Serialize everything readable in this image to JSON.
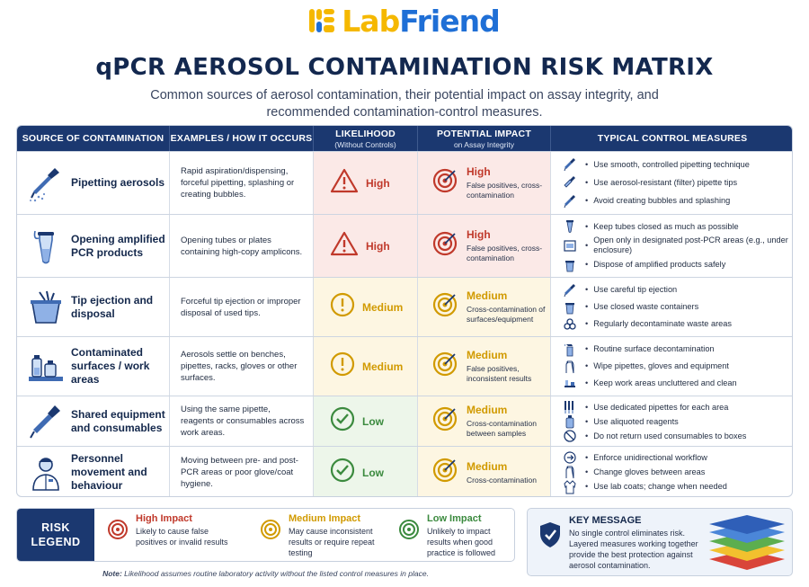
{
  "brand": {
    "logo_lab": "Lab",
    "logo_friend": "Friend"
  },
  "header": {
    "title": "qPCR AEROSOL CONTAMINATION RISK MATRIX",
    "subtitle": "Common sources of aerosol contamination, their potential impact on assay integrity, and recommended contamination-control measures."
  },
  "columns": {
    "source": "SOURCE OF CONTAMINATION",
    "examples": "EXAMPLES / HOW IT OCCURS",
    "likelihood": "LIKELIHOOD",
    "likelihood_sub": "(Without Controls)",
    "impact": "POTENTIAL IMPACT",
    "impact_sub": "on Assay Integrity",
    "controls": "TYPICAL CONTROL MEASURES"
  },
  "rows": [
    {
      "source": "Pipetting aerosols",
      "source_icon": "pipette-spray-icon",
      "examples": "Rapid aspiration/dispensing, forceful pipetting, splashing or creating bubbles.",
      "likelihood": "High",
      "likelihood_icon": "warning-icon",
      "impact": "High",
      "impact_desc": "False positives, cross-contamination",
      "impact_icon": "target-icon",
      "controls": [
        {
          "icon": "pipette-icon",
          "text": "Use smooth, controlled pipetting technique"
        },
        {
          "icon": "filter-tip-icon",
          "text": "Use aerosol-resistant (filter) pipette tips"
        },
        {
          "icon": "pipette-icon",
          "text": "Avoid creating bubbles and splashing"
        }
      ]
    },
    {
      "source": "Opening amplified PCR products",
      "source_icon": "pcr-tube-icon",
      "examples": "Opening tubes or plates containing high-copy amplicons.",
      "likelihood": "High",
      "likelihood_icon": "warning-icon",
      "impact": "High",
      "impact_desc": "False positives, cross-contamination",
      "impact_icon": "target-icon",
      "controls": [
        {
          "icon": "closed-tube-icon",
          "text": "Keep tubes closed as much as possible"
        },
        {
          "icon": "enclosure-icon",
          "text": "Open only in designated post-PCR areas (e.g., under enclosure)"
        },
        {
          "icon": "waste-bin-icon",
          "text": "Dispose of amplified products safely"
        }
      ]
    },
    {
      "source": "Tip ejection and disposal",
      "source_icon": "tip-box-icon",
      "examples": "Forceful tip ejection or improper disposal of used tips.",
      "likelihood": "Medium",
      "likelihood_icon": "exclamation-icon",
      "impact": "Medium",
      "impact_desc": "Cross-contamination of surfaces/equipment",
      "impact_icon": "target-icon",
      "controls": [
        {
          "icon": "pipette-icon",
          "text": "Use careful tip ejection"
        },
        {
          "icon": "waste-bin-icon",
          "text": "Use closed waste containers"
        },
        {
          "icon": "biohazard-icon",
          "text": "Regularly decontaminate waste areas"
        }
      ]
    },
    {
      "source": "Contaminated surfaces / work areas",
      "source_icon": "bench-bottles-icon",
      "examples": "Aerosols settle on benches, pipettes, racks, gloves or other surfaces.",
      "likelihood": "Medium",
      "likelihood_icon": "exclamation-icon",
      "impact": "Medium",
      "impact_desc": "False positives, inconsistent results",
      "impact_icon": "target-icon",
      "controls": [
        {
          "icon": "spray-bottle-icon",
          "text": "Routine surface decontamination"
        },
        {
          "icon": "glove-icon",
          "text": "Wipe pipettes, gloves and equipment"
        },
        {
          "icon": "workspace-icon",
          "text": "Keep work areas uncluttered and clean"
        }
      ]
    },
    {
      "source": "Shared equipment and consumables",
      "source_icon": "pipette-icon",
      "examples": "Using the same pipette, reagents or consumables across work areas.",
      "likelihood": "Low",
      "likelihood_icon": "check-icon",
      "impact": "Medium",
      "impact_desc": "Cross-contamination between samples",
      "impact_icon": "target-icon",
      "controls": [
        {
          "icon": "pipette-set-icon",
          "text": "Use dedicated pipettes for each area"
        },
        {
          "icon": "aliquot-bottle-icon",
          "text": "Use aliquoted reagents"
        },
        {
          "icon": "no-return-icon",
          "text": "Do not return used consumables to boxes"
        }
      ]
    },
    {
      "source": "Personnel movement and behaviour",
      "source_icon": "person-icon",
      "examples": "Moving between pre- and post-PCR areas or poor glove/coat hygiene.",
      "likelihood": "Low",
      "likelihood_icon": "check-icon",
      "impact": "Medium",
      "impact_desc": "Cross-contamination",
      "impact_icon": "target-icon",
      "controls": [
        {
          "icon": "arrow-circle-icon",
          "text": "Enforce unidirectional workflow"
        },
        {
          "icon": "glove-icon",
          "text": "Change gloves between areas"
        },
        {
          "icon": "lab-coat-icon",
          "text": "Use lab coats; change when needed"
        }
      ]
    }
  ],
  "legend": {
    "title_line1": "RISK",
    "title_line2": "LEGEND",
    "high_title": "High Impact",
    "high_desc": "Likely to cause false positives or invalid results",
    "med_title": "Medium Impact",
    "med_desc": "May cause inconsistent results or require repeat testing",
    "low_title": "Low Impact",
    "low_desc": "Unlikely to impact results when good practice is followed",
    "colors": {
      "high": "#c0392b",
      "medium": "#d19a00",
      "low": "#3b8a3e"
    }
  },
  "note": {
    "label": "Note:",
    "text": "Likelihood assumes routine laboratory activity without the listed control measures in place."
  },
  "key_message": {
    "title": "KEY MESSAGE",
    "text": "No single control eliminates risk. Layered measures working together provide the best protection against aerosol contamination."
  }
}
